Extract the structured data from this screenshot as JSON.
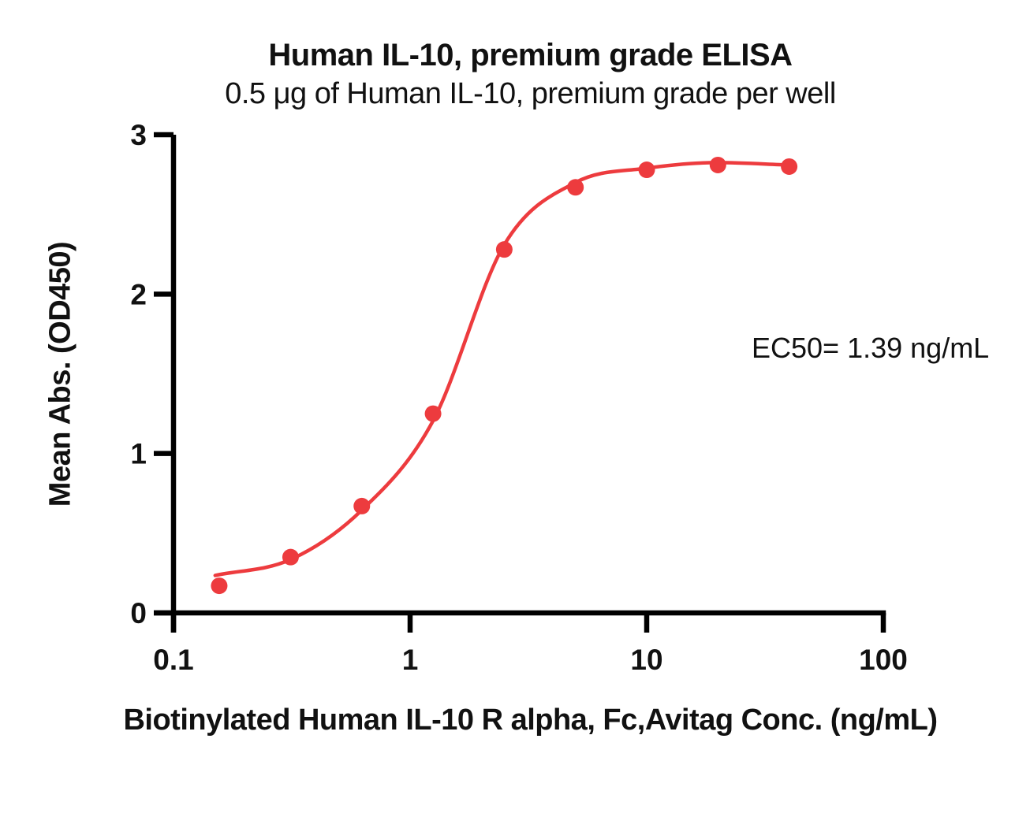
{
  "figure": {
    "title": "Human IL-10, premium grade ELISA",
    "subtitle": "0.5 μg of Human IL-10, premium grade per well",
    "annotation": "EC50= 1.39 ng/mL"
  },
  "chart_data": {
    "type": "scatter",
    "title": "Human IL-10, premium grade ELISA",
    "subtitle": "0.5 μg of Human IL-10, premium grade per well",
    "xlabel": "Biotinylated Human IL-10 R alpha, Fc,Avitag Conc. (ng/mL)",
    "ylabel": "Mean Abs. (OD450)",
    "x_scale": "log10",
    "xlim": [
      0.1,
      100
    ],
    "ylim": [
      0,
      3
    ],
    "x_ticks": [
      0.1,
      1,
      10,
      100
    ],
    "x_tick_labels": [
      "0.1",
      "1",
      "10",
      "100"
    ],
    "y_ticks": [
      0,
      1,
      2,
      3
    ],
    "y_tick_labels": [
      "0",
      "1",
      "2",
      "3"
    ],
    "grid": false,
    "legend": false,
    "ec50_ng_ml": 1.39,
    "annotation": "EC50= 1.39 ng/mL",
    "points": {
      "x": [
        0.156,
        0.3125,
        0.625,
        1.25,
        2.5,
        5,
        10,
        20,
        40
      ],
      "y": [
        0.17,
        0.35,
        0.67,
        1.25,
        2.28,
        2.67,
        2.78,
        2.81,
        2.8
      ]
    },
    "fit_curve": {
      "x": [
        0.15,
        0.3125,
        0.625,
        1.25,
        2.5,
        5,
        10,
        20,
        40
      ],
      "y": [
        0.235,
        0.335,
        0.645,
        1.205,
        2.31,
        2.7,
        2.79,
        2.825,
        2.81
      ]
    },
    "colors": {
      "series": "#ED3B3E",
      "axis": "#000000",
      "text": "#111111"
    }
  }
}
